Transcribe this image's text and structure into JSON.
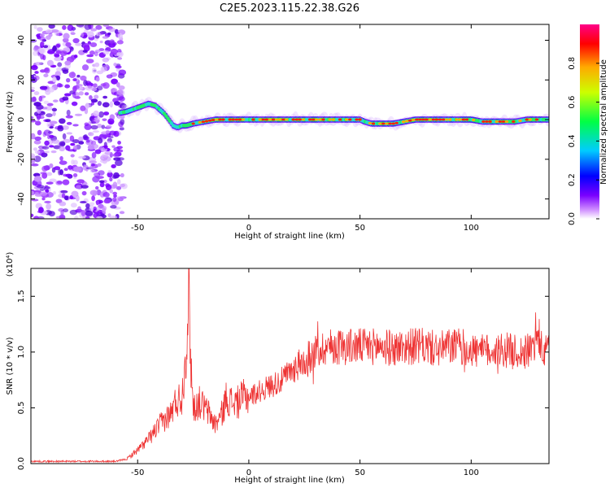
{
  "title": "C2E5.2023.115.22.38.G26",
  "chart_data": [
    {
      "type": "heatmap",
      "xlabel": "Height of straight line (km)",
      "ylabel": "Frequency (Hz)",
      "xlim": [
        -98,
        135
      ],
      "ylim": [
        -50,
        48
      ],
      "x_ticks": [
        "-50",
        "0",
        "50",
        "100"
      ],
      "y_ticks": [
        "-40",
        "-20",
        "0",
        "20",
        "40"
      ],
      "colorbar": {
        "label": "Normalized spectral amplitude",
        "range": [
          0,
          1
        ],
        "ticks": [
          "0.0",
          "0.2",
          "0.4",
          "0.6",
          "0.8"
        ]
      },
      "noise_region_x": [
        -98,
        -56
      ],
      "ridge": {
        "x": [
          -60,
          -55,
          -50,
          -45,
          -42,
          -40,
          -38,
          -36,
          -34,
          -32,
          -30,
          -28,
          -25,
          -20,
          -15,
          -10,
          -5,
          0,
          10,
          20,
          30,
          40,
          50,
          52,
          55,
          60,
          65,
          70,
          75,
          80,
          85,
          90,
          95,
          100,
          105,
          110,
          115,
          120,
          125,
          130,
          135
        ],
        "y": [
          3,
          4,
          6,
          8,
          7,
          5,
          3,
          0,
          -3,
          -4,
          -3,
          -3,
          -2,
          -1,
          0,
          0,
          0,
          0,
          0,
          0,
          0,
          0,
          0,
          -1,
          -2,
          -2,
          -2,
          -1,
          0,
          0,
          0,
          0,
          0,
          0,
          -1,
          -1,
          -1,
          -1,
          0,
          0,
          0
        ]
      }
    },
    {
      "type": "line",
      "xlabel": "Height of straight line (km)",
      "ylabel": "SNR (10 * v/v)",
      "y_scale_label": "(x10⁴)",
      "xlim": [
        -98,
        135
      ],
      "ylim": [
        0,
        1.75
      ],
      "x_ticks": [
        "-50",
        "0",
        "50",
        "100"
      ],
      "y_ticks": [
        "0.0",
        "0.5",
        "1.0",
        "1.5"
      ],
      "color": "#ee3333",
      "series": [
        {
          "x": [
            -98,
            -90,
            -80,
            -70,
            -60,
            -55,
            -50,
            -45,
            -40,
            -35,
            -33,
            -30,
            -28,
            -27,
            -26,
            -25,
            -22,
            -20,
            -18,
            -15,
            -12,
            -10,
            -8,
            -5,
            -2,
            0,
            5,
            10,
            15,
            20,
            25,
            30,
            35,
            40,
            45,
            50,
            55,
            60,
            65,
            70,
            75,
            80,
            85,
            90,
            95,
            100,
            105,
            110,
            115,
            120,
            125,
            128,
            130,
            132,
            135
          ],
          "y": [
            0.02,
            0.02,
            0.02,
            0.02,
            0.02,
            0.04,
            0.12,
            0.22,
            0.35,
            0.45,
            0.55,
            0.6,
            1.1,
            1.52,
            0.9,
            0.5,
            0.55,
            0.5,
            0.45,
            0.35,
            0.45,
            0.6,
            0.55,
            0.55,
            0.6,
            0.6,
            0.65,
            0.7,
            0.75,
            0.85,
            0.92,
            1.0,
            1.05,
            1.05,
            1.05,
            1.05,
            1.05,
            1.05,
            1.03,
            1.05,
            1.05,
            1.05,
            1.02,
            1.05,
            1.05,
            1.02,
            1.0,
            1.02,
            1.02,
            1.0,
            1.0,
            1.05,
            1.15,
            1.0,
            1.0
          ]
        }
      ]
    }
  ]
}
